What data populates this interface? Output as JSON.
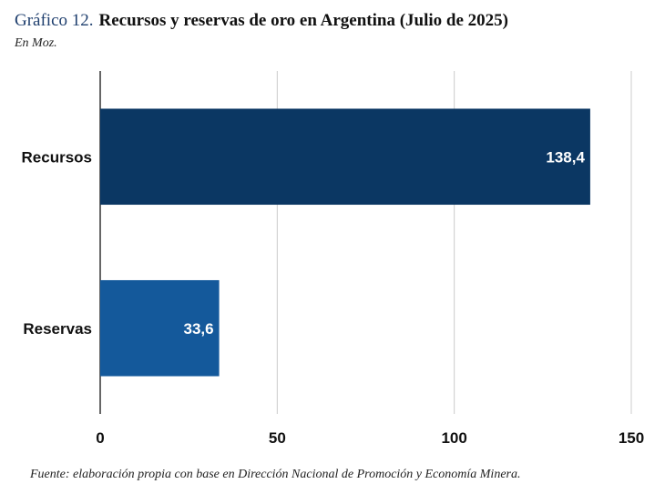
{
  "chart_data": {
    "type": "hbar",
    "label": "Gráfico 12.",
    "title": "Recursos y reservas de oro en Argentina (Julio de 2025)",
    "subtitle": "En Moz.",
    "source": "Fuente: elaboración propia con base en Dirección Nacional de Promoción y Economía Minera.",
    "categories": [
      "Recursos",
      "Reservas"
    ],
    "values": [
      138.4,
      33.6
    ],
    "value_labels": [
      "138,4",
      "33,6"
    ],
    "colors": [
      "#0b3763",
      "#14599b"
    ],
    "xlim": [
      0,
      150
    ],
    "xticks": [
      0,
      50,
      100,
      150
    ],
    "grid": true
  }
}
